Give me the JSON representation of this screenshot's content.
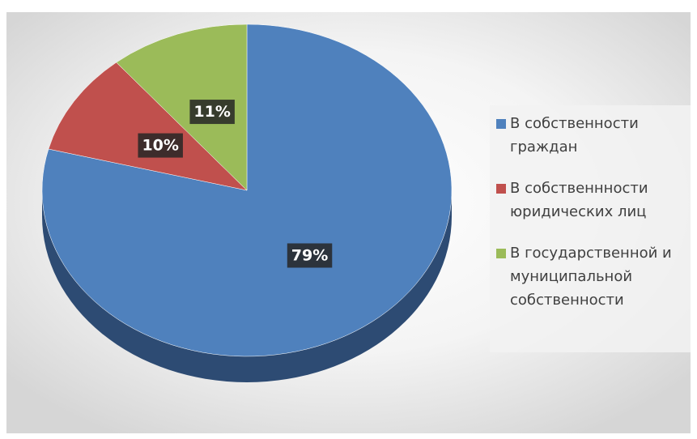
{
  "chart_data": {
    "type": "pie",
    "categories": [
      "В собственности граждан",
      "В собственнности юридических лиц",
      "В государственной и муниципальной собственности"
    ],
    "values": [
      79,
      10,
      11
    ],
    "value_labels": [
      "79%",
      "10%",
      "11%"
    ],
    "colors": [
      "#4f81bd",
      "#c0504d",
      "#9bbb59"
    ],
    "side_colors": [
      "#2d4b73",
      "#7a2f2d",
      "#5e7634"
    ],
    "legend": "right"
  }
}
